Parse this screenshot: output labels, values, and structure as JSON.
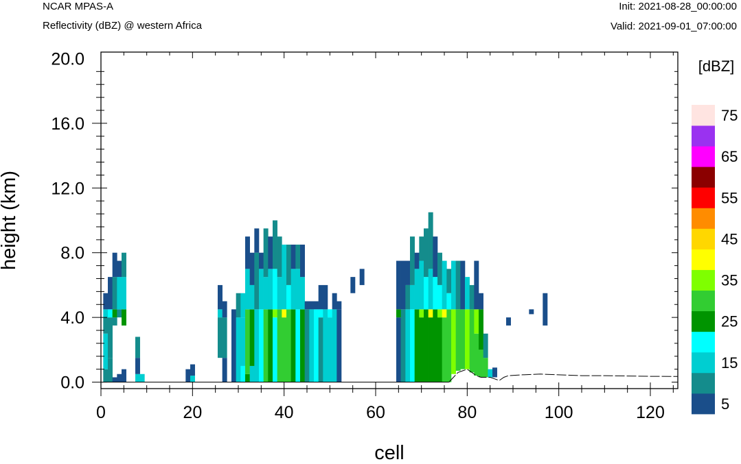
{
  "header": {
    "model": "NCAR MPAS-A",
    "field": "Reflectivity (dBZ) @ western Africa",
    "init": "Init: 2021-08-28_00:00:00",
    "valid": "Valid: 2021-09-01_07:00:00"
  },
  "chart_data": {
    "type": "heatmap",
    "title": "NCAR MPAS-A",
    "subtitle": "Reflectivity (dBZ) @ western Africa",
    "xlabel": "cell",
    "ylabel": "height (km)",
    "xlim": [
      0,
      126
    ],
    "ylim": [
      -0.4,
      20.4
    ],
    "x_ticks": [
      0,
      20,
      40,
      60,
      80,
      100,
      120
    ],
    "x_tick_labels": [
      "0",
      "20",
      "40",
      "60",
      "80",
      "100",
      "120"
    ],
    "y_ticks": [
      0,
      4,
      8,
      12,
      16,
      20
    ],
    "y_tick_labels": [
      "0.0",
      "4.0",
      "8.0",
      "12.0",
      "16.0",
      "20.0"
    ],
    "grid": false,
    "colorbar": {
      "label": "[dBZ]",
      "levels": [
        5,
        10,
        15,
        20,
        25,
        30,
        35,
        40,
        45,
        50,
        55,
        60,
        65,
        70,
        75
      ],
      "tick_labels": [
        "5",
        "15",
        "25",
        "35",
        "45",
        "55",
        "65",
        "75"
      ],
      "colors": [
        "#1a4e8a",
        "#148c8c",
        "#00ced1",
        "#00ffff",
        "#009400",
        "#32cd32",
        "#7fff00",
        "#ffff00",
        "#ffd700",
        "#ff8c00",
        "#ff0000",
        "#8b0000",
        "#ff00ff",
        "#9a32f0",
        "#ffe4e1"
      ]
    },
    "columns": [
      {
        "x": 1,
        "top": 5.5,
        "bins": [
          [
            0,
            0.8,
            10
          ],
          [
            0.8,
            3.0,
            15
          ],
          [
            3.0,
            4.0,
            10
          ],
          [
            4.0,
            4.5,
            15
          ],
          [
            4.5,
            5.5,
            5
          ]
        ]
      },
      {
        "x": 2,
        "top": 6.5,
        "bins": [
          [
            0,
            1.5,
            10
          ],
          [
            1.5,
            4.0,
            10
          ],
          [
            4.0,
            4.5,
            20
          ],
          [
            4.5,
            6.5,
            5
          ]
        ]
      },
      {
        "x": 3,
        "top": 8.0,
        "bins": [
          [
            0,
            0.3,
            5
          ],
          [
            3.5,
            4.0,
            10
          ],
          [
            4.0,
            4.5,
            25
          ],
          [
            4.5,
            6.5,
            10
          ],
          [
            6.5,
            8.0,
            5
          ]
        ]
      },
      {
        "x": 4,
        "top": 7.5,
        "bins": [
          [
            0,
            0.5,
            5
          ],
          [
            4.0,
            4.5,
            10
          ],
          [
            4.5,
            6.5,
            15
          ],
          [
            6.5,
            7.5,
            5
          ]
        ]
      },
      {
        "x": 5,
        "top": 8.0,
        "bins": [
          [
            0,
            0.8,
            5
          ],
          [
            3.5,
            4.5,
            25
          ],
          [
            4.5,
            6.5,
            15
          ],
          [
            6.5,
            8.0,
            10
          ]
        ]
      },
      {
        "x": 8,
        "top": 2.8,
        "bins": [
          [
            0,
            0.5,
            15
          ],
          [
            0.5,
            1.5,
            5
          ],
          [
            1.5,
            2.8,
            10
          ]
        ]
      },
      {
        "x": 9,
        "top": 0.5,
        "bins": [
          [
            0,
            0.5,
            15
          ]
        ]
      },
      {
        "x": 19,
        "top": 0.8,
        "bins": [
          [
            0,
            0.8,
            5
          ]
        ]
      },
      {
        "x": 20,
        "top": 1.1,
        "bins": [
          [
            0,
            0.4,
            15
          ],
          [
            0.4,
            1.1,
            5
          ]
        ]
      },
      {
        "x": 26,
        "top": 6.0,
        "bins": [
          [
            1.5,
            4.0,
            10
          ],
          [
            4.0,
            4.5,
            15
          ],
          [
            4.5,
            6.0,
            5
          ]
        ]
      },
      {
        "x": 27,
        "top": 5.0,
        "bins": [
          [
            0,
            1.5,
            5
          ],
          [
            1.5,
            4.0,
            10
          ],
          [
            4.0,
            5.0,
            5
          ]
        ]
      },
      {
        "x": 29,
        "top": 4.5,
        "bins": [
          [
            0,
            4.5,
            5
          ]
        ]
      },
      {
        "x": 30,
        "top": 5.5,
        "bins": [
          [
            0,
            4.0,
            15
          ],
          [
            4.0,
            5.5,
            10
          ]
        ]
      },
      {
        "x": 31,
        "top": 5.5,
        "bins": [
          [
            0,
            1.0,
            20
          ],
          [
            1.0,
            4.0,
            15
          ],
          [
            4.0,
            5.5,
            15
          ]
        ]
      },
      {
        "x": 32,
        "top": 9.0,
        "bins": [
          [
            0,
            0.5,
            25
          ],
          [
            0.5,
            4.5,
            30
          ],
          [
            4.5,
            7.0,
            15
          ],
          [
            7.0,
            9.0,
            5
          ]
        ]
      },
      {
        "x": 33,
        "top": 8.0,
        "bins": [
          [
            0,
            1.0,
            15
          ],
          [
            1.0,
            4.5,
            25
          ],
          [
            4.5,
            6.0,
            15
          ],
          [
            6.0,
            8.0,
            5
          ]
        ]
      },
      {
        "x": 34,
        "top": 9.5,
        "bins": [
          [
            0,
            4.5,
            15
          ],
          [
            4.5,
            8.0,
            10
          ],
          [
            8.0,
            9.5,
            5
          ]
        ]
      },
      {
        "x": 35,
        "top": 8.0,
        "bins": [
          [
            0,
            4.5,
            20
          ],
          [
            4.5,
            7.0,
            15
          ],
          [
            7.0,
            8.0,
            5
          ]
        ]
      },
      {
        "x": 36,
        "top": 9.5,
        "bins": [
          [
            0,
            4.5,
            30
          ],
          [
            4.5,
            6.5,
            15
          ],
          [
            6.5,
            9.5,
            10
          ]
        ]
      },
      {
        "x": 37,
        "top": 9.0,
        "bins": [
          [
            0,
            4.5,
            25
          ],
          [
            4.5,
            7.0,
            15
          ],
          [
            7.0,
            9.0,
            5
          ]
        ]
      },
      {
        "x": 38,
        "top": 10.0,
        "bins": [
          [
            0,
            4.0,
            20
          ],
          [
            4.0,
            4.5,
            35
          ],
          [
            4.5,
            7.0,
            20
          ],
          [
            7.0,
            10.0,
            10
          ]
        ]
      },
      {
        "x": 39,
        "top": 9.0,
        "bins": [
          [
            0,
            4.5,
            30
          ],
          [
            4.5,
            6.5,
            15
          ],
          [
            6.5,
            9.0,
            10
          ]
        ]
      },
      {
        "x": 40,
        "top": 8.5,
        "bins": [
          [
            0,
            4.0,
            30
          ],
          [
            4.0,
            4.5,
            40
          ],
          [
            4.5,
            8.5,
            15
          ]
        ]
      },
      {
        "x": 41,
        "top": 8.5,
        "bins": [
          [
            0,
            4.5,
            30
          ],
          [
            4.5,
            6.0,
            20
          ],
          [
            6.0,
            8.5,
            10
          ]
        ]
      },
      {
        "x": 42,
        "top": 8.5,
        "bins": [
          [
            0,
            4.5,
            25
          ],
          [
            4.5,
            7.0,
            15
          ],
          [
            7.0,
            8.5,
            5
          ]
        ]
      },
      {
        "x": 43,
        "top": 8.5,
        "bins": [
          [
            0,
            4.5,
            20
          ],
          [
            4.5,
            7.0,
            15
          ],
          [
            7.0,
            8.5,
            10
          ]
        ]
      },
      {
        "x": 44,
        "top": 8.5,
        "bins": [
          [
            0,
            4.5,
            25
          ],
          [
            4.5,
            6.5,
            15
          ],
          [
            6.5,
            8.5,
            5
          ]
        ]
      },
      {
        "x": 45,
        "top": 5.0,
        "bins": [
          [
            0,
            4.5,
            10
          ],
          [
            4.5,
            5.0,
            5
          ]
        ]
      },
      {
        "x": 46,
        "top": 5.0,
        "bins": [
          [
            0,
            4.5,
            15
          ],
          [
            4.5,
            5.0,
            5
          ]
        ]
      },
      {
        "x": 47,
        "top": 5.0,
        "bins": [
          [
            0,
            4.5,
            20
          ],
          [
            4.5,
            5.0,
            5
          ]
        ]
      },
      {
        "x": 48,
        "top": 6.0,
        "bins": [
          [
            0,
            4.0,
            10
          ],
          [
            4.0,
            4.5,
            20
          ],
          [
            4.5,
            6.0,
            5
          ]
        ]
      },
      {
        "x": 49,
        "top": 6.0,
        "bins": [
          [
            0,
            4.5,
            15
          ],
          [
            4.5,
            6.0,
            5
          ]
        ]
      },
      {
        "x": 50,
        "top": 4.5,
        "bins": [
          [
            0,
            4.0,
            15
          ],
          [
            4.0,
            4.5,
            20
          ]
        ]
      },
      {
        "x": 51,
        "top": 5.5,
        "bins": [
          [
            0,
            4.5,
            15
          ],
          [
            4.5,
            5.5,
            5
          ]
        ]
      },
      {
        "x": 52,
        "top": 5.0,
        "bins": [
          [
            0,
            4.5,
            5
          ],
          [
            4.5,
            5.0,
            5
          ]
        ]
      },
      {
        "x": 55,
        "top": 6.5,
        "bins": [
          [
            5.5,
            6.5,
            5
          ]
        ]
      },
      {
        "x": 57,
        "top": 7.0,
        "bins": [
          [
            6.0,
            7.0,
            5
          ]
        ]
      },
      {
        "x": 65,
        "top": 7.5,
        "bins": [
          [
            0,
            4.0,
            5
          ],
          [
            4.0,
            4.5,
            25
          ],
          [
            4.5,
            7.5,
            5
          ]
        ]
      },
      {
        "x": 66,
        "top": 7.5,
        "bins": [
          [
            0,
            4.5,
            10
          ],
          [
            4.5,
            7.5,
            5
          ]
        ]
      },
      {
        "x": 67,
        "top": 7.5,
        "bins": [
          [
            0,
            4.5,
            15
          ],
          [
            4.5,
            6.0,
            10
          ],
          [
            6.0,
            7.5,
            5
          ]
        ]
      },
      {
        "x": 68,
        "top": 9.0,
        "bins": [
          [
            0,
            4.5,
            20
          ],
          [
            4.5,
            6.0,
            15
          ],
          [
            6.0,
            9.0,
            10
          ]
        ]
      },
      {
        "x": 69,
        "top": 8.0,
        "bins": [
          [
            0,
            4.5,
            25
          ],
          [
            4.5,
            7.0,
            15
          ],
          [
            7.0,
            8.0,
            5
          ]
        ]
      },
      {
        "x": 70,
        "top": 9.0,
        "bins": [
          [
            0,
            4.0,
            25
          ],
          [
            4.0,
            4.5,
            35
          ],
          [
            4.5,
            7.5,
            15
          ],
          [
            7.5,
            9.0,
            10
          ]
        ]
      },
      {
        "x": 71,
        "top": 9.5,
        "bins": [
          [
            0,
            4.5,
            25
          ],
          [
            4.5,
            6.5,
            20
          ],
          [
            6.5,
            9.5,
            10
          ]
        ]
      },
      {
        "x": 72,
        "top": 10.5,
        "bins": [
          [
            0,
            4.0,
            25
          ],
          [
            4.0,
            4.5,
            40
          ],
          [
            4.5,
            7.0,
            15
          ],
          [
            7.0,
            10.5,
            10
          ]
        ]
      },
      {
        "x": 73,
        "top": 9.0,
        "bins": [
          [
            0,
            4.5,
            25
          ],
          [
            4.5,
            6.5,
            20
          ],
          [
            6.5,
            9.0,
            5
          ]
        ]
      },
      {
        "x": 74,
        "top": 8.0,
        "bins": [
          [
            0,
            4.0,
            25
          ],
          [
            4.0,
            4.5,
            35
          ],
          [
            4.5,
            6.0,
            20
          ],
          [
            6.0,
            8.0,
            10
          ]
        ]
      },
      {
        "x": 75,
        "top": 7.5,
        "bins": [
          [
            0,
            4.0,
            30
          ],
          [
            4.0,
            4.5,
            40
          ],
          [
            4.5,
            7.5,
            15
          ]
        ]
      },
      {
        "x": 76,
        "top": 7.0,
        "bins": [
          [
            0,
            4.5,
            30
          ],
          [
            4.5,
            5.5,
            20
          ],
          [
            5.5,
            7.0,
            10
          ]
        ]
      },
      {
        "x": 77,
        "top": 7.5,
        "bins": [
          [
            0.5,
            4.5,
            35
          ],
          [
            4.5,
            7.5,
            15
          ]
        ]
      },
      {
        "x": 78,
        "top": 7.5,
        "bins": [
          [
            0.7,
            4.5,
            30
          ],
          [
            4.5,
            7.5,
            10
          ]
        ]
      },
      {
        "x": 79,
        "top": 7.5,
        "bins": [
          [
            0.8,
            4.5,
            30
          ],
          [
            4.5,
            7.5,
            5
          ]
        ]
      },
      {
        "x": 80,
        "top": 6.5,
        "bins": [
          [
            0.8,
            4.5,
            35
          ],
          [
            4.5,
            6.5,
            15
          ]
        ]
      },
      {
        "x": 81,
        "top": 6.0,
        "bins": [
          [
            0.6,
            4.5,
            30
          ],
          [
            4.5,
            6.0,
            10
          ]
        ]
      },
      {
        "x": 82,
        "top": 7.5,
        "bins": [
          [
            0.4,
            3.0,
            30
          ],
          [
            3.0,
            4.5,
            35
          ],
          [
            4.5,
            7.5,
            5
          ]
        ]
      },
      {
        "x": 83,
        "top": 5.5,
        "bins": [
          [
            0.3,
            2.0,
            30
          ],
          [
            2.0,
            4.5,
            25
          ],
          [
            4.5,
            5.5,
            5
          ]
        ]
      },
      {
        "x": 84,
        "top": 3.0,
        "bins": [
          [
            0.3,
            1.5,
            30
          ],
          [
            1.5,
            3.0,
            10
          ]
        ]
      },
      {
        "x": 85,
        "top": 0.8,
        "bins": [
          [
            0.3,
            0.8,
            15
          ]
        ]
      },
      {
        "x": 86,
        "top": 0.9,
        "bins": [
          [
            0.3,
            0.9,
            5
          ]
        ]
      },
      {
        "x": 89,
        "top": 4.0,
        "bins": [
          [
            3.5,
            4.0,
            5
          ]
        ]
      },
      {
        "x": 94,
        "top": 4.5,
        "bins": [
          [
            4.2,
            4.5,
            5
          ]
        ]
      },
      {
        "x": 97,
        "top": 5.5,
        "bins": [
          [
            3.5,
            5.5,
            5
          ]
        ]
      }
    ],
    "terrain": [
      [
        76,
        0.0
      ],
      [
        77,
        0.3
      ],
      [
        78,
        0.6
      ],
      [
        79,
        0.7
      ],
      [
        80,
        0.8
      ],
      [
        81,
        0.6
      ],
      [
        82,
        0.4
      ],
      [
        83,
        0.3
      ],
      [
        84,
        0.3
      ],
      [
        85,
        0.3
      ],
      [
        86,
        0.2
      ],
      [
        87,
        0.1
      ],
      [
        88,
        0.3
      ],
      [
        89,
        0.4
      ],
      [
        92,
        0.45
      ],
      [
        96,
        0.5
      ],
      [
        100,
        0.45
      ],
      [
        105,
        0.4
      ],
      [
        110,
        0.4
      ],
      [
        115,
        0.38
      ],
      [
        120,
        0.36
      ],
      [
        126,
        0.35
      ]
    ]
  }
}
